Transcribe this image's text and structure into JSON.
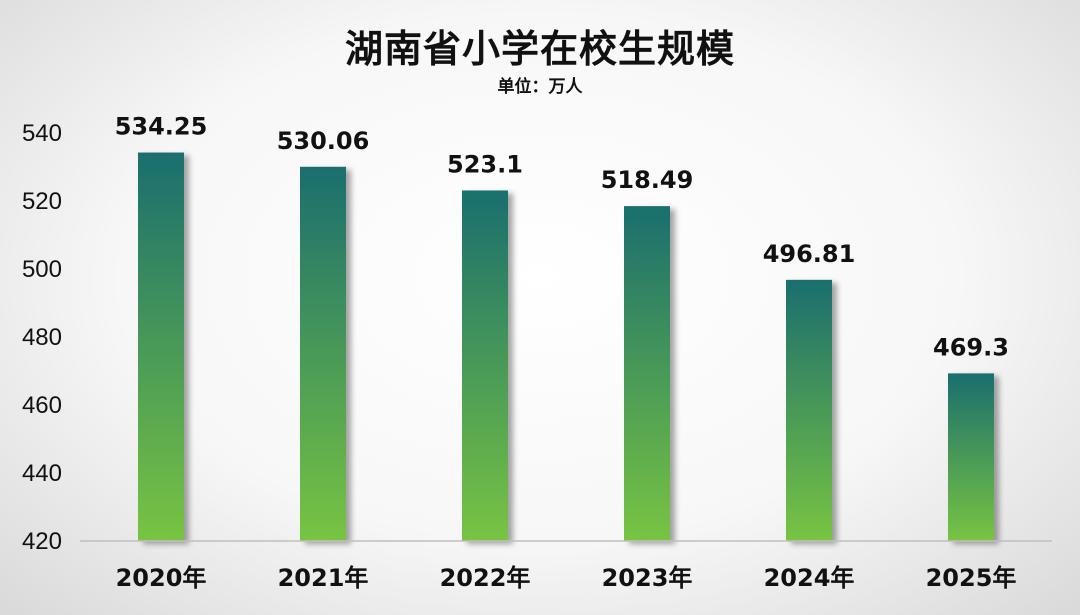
{
  "chart_data": {
    "type": "bar",
    "title": "湖南省小学在校生规模",
    "subtitle": "单位：万人",
    "categories": [
      "2020年",
      "2021年",
      "2022年",
      "2023年",
      "2024年",
      "2025年"
    ],
    "values": [
      534.25,
      530.06,
      523.1,
      518.49,
      496.81,
      469.3
    ],
    "value_labels": [
      "534.25",
      "530.06",
      "523.1",
      "518.49",
      "496.81",
      "469.3"
    ],
    "ylim": [
      420,
      540
    ],
    "yticks": [
      420,
      440,
      460,
      480,
      500,
      520,
      540
    ],
    "grid": false,
    "legend": "none",
    "colors": {
      "bar_top": "#1a6e6e",
      "bar_bottom": "#78c442",
      "axis": "#bfbfbf"
    }
  }
}
